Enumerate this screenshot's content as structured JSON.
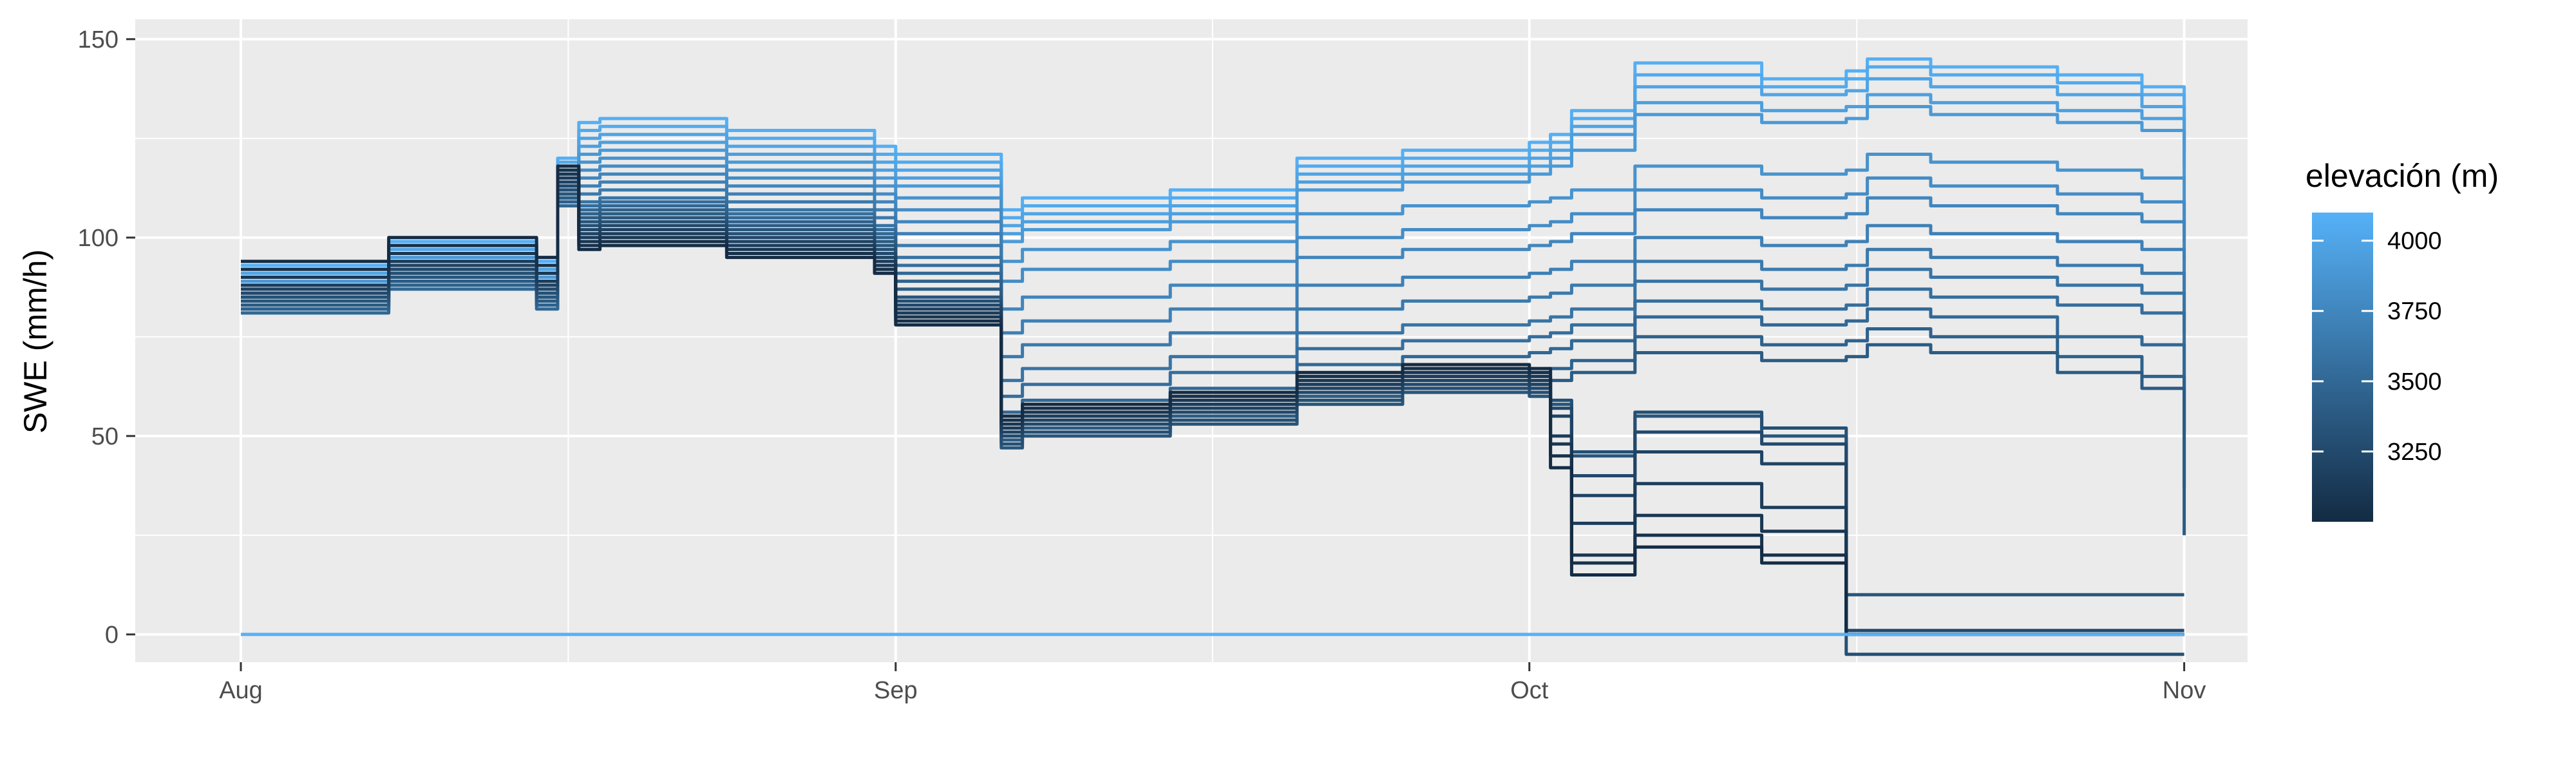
{
  "chart_data": {
    "type": "line",
    "title": "",
    "xlabel": "",
    "ylabel": "SWE (mm/h)",
    "x_ticks": [
      "Aug",
      "Sep",
      "Oct",
      "Nov"
    ],
    "y_ticks": [
      0,
      50,
      100,
      150
    ],
    "ylim": [
      -7,
      155
    ],
    "xlim": [
      "2023-07-27",
      "2023-11-04"
    ],
    "grid": true,
    "legend": {
      "title": "elevación (m)",
      "type": "colorbar",
      "placement": "right",
      "ticks": [
        3250,
        3500,
        3750,
        4000
      ],
      "range": [
        3000,
        4100
      ],
      "color_low": "#132b43",
      "color_high": "#56b1f7"
    },
    "x_dates": [
      "2023-08-01",
      "2023-08-07",
      "2023-08-08",
      "2023-08-15",
      "2023-08-16",
      "2023-08-17",
      "2023-08-18",
      "2023-08-24",
      "2023-08-31",
      "2023-09-01",
      "2023-09-06",
      "2023-09-07",
      "2023-09-08",
      "2023-09-14",
      "2023-09-20",
      "2023-09-25",
      "2023-10-01",
      "2023-10-02",
      "2023-10-03",
      "2023-10-06",
      "2023-10-12",
      "2023-10-16",
      "2023-10-17",
      "2023-10-20",
      "2023-10-24",
      "2023-10-26",
      "2023-10-30",
      "2023-11-01"
    ],
    "series": [
      {
        "elevation": 4080,
        "values": [
          93,
          93,
          99,
          94,
          120,
          129,
          130,
          127,
          123,
          121,
          107,
          110,
          110,
          112,
          120,
          122,
          124,
          126,
          132,
          144,
          140,
          142,
          145,
          143,
          143,
          141,
          138,
          126
        ]
      },
      {
        "elevation": 4040,
        "values": [
          92,
          92,
          98,
          93,
          119,
          127,
          128,
          125,
          121,
          119,
          105,
          108,
          108,
          110,
          118,
          120,
          122,
          124,
          130,
          141,
          138,
          140,
          143,
          141,
          141,
          139,
          136,
          124
        ]
      },
      {
        "elevation": 3990,
        "values": [
          91,
          91,
          97,
          92,
          118,
          125,
          126,
          123,
          119,
          117,
          103,
          106,
          106,
          108,
          116,
          118,
          120,
          122,
          128,
          138,
          136,
          137,
          140,
          138,
          138,
          136,
          133,
          121
        ]
      },
      {
        "elevation": 3950,
        "values": [
          90,
          90,
          96,
          91,
          117,
          123,
          124,
          121,
          117,
          115,
          101,
          104,
          104,
          106,
          114,
          116,
          118,
          120,
          126,
          134,
          132,
          133,
          136,
          134,
          134,
          132,
          130,
          118
        ]
      },
      {
        "elevation": 3900,
        "values": [
          89,
          89,
          95,
          90,
          116,
          121,
          122,
          119,
          115,
          113,
          99,
          102,
          102,
          104,
          112,
          114,
          116,
          118,
          122,
          131,
          129,
          130,
          133,
          131,
          131,
          129,
          127,
          115
        ]
      },
      {
        "elevation": 3850,
        "values": [
          88,
          88,
          94,
          89,
          115,
          119,
          120,
          117,
          113,
          110,
          94,
          97,
          97,
          99,
          106,
          108,
          109,
          110,
          112,
          118,
          116,
          117,
          121,
          119,
          119,
          117,
          115,
          103
        ]
      },
      {
        "elevation": 3800,
        "values": [
          87,
          87,
          93,
          88,
          114,
          117,
          118,
          115,
          111,
          107,
          89,
          92,
          92,
          94,
          100,
          102,
          103,
          104,
          106,
          112,
          110,
          111,
          115,
          113,
          113,
          111,
          109,
          99
        ]
      },
      {
        "elevation": 3750,
        "values": [
          86,
          86,
          92,
          87,
          113,
          115,
          116,
          113,
          109,
          104,
          82,
          85,
          85,
          88,
          95,
          97,
          98,
          99,
          101,
          107,
          105,
          106,
          110,
          108,
          108,
          106,
          104,
          94
        ]
      },
      {
        "elevation": 3700,
        "values": [
          85,
          85,
          91,
          86,
          112,
          113,
          114,
          111,
          107,
          101,
          76,
          79,
          79,
          82,
          88,
          90,
          91,
          92,
          94,
          100,
          98,
          99,
          103,
          101,
          101,
          99,
          97,
          87
        ]
      },
      {
        "elevation": 3650,
        "values": [
          84,
          84,
          90,
          85,
          111,
          111,
          112,
          109,
          105,
          98,
          70,
          73,
          73,
          76,
          82,
          84,
          85,
          86,
          88,
          94,
          92,
          93,
          97,
          95,
          95,
          93,
          91,
          80
        ]
      },
      {
        "elevation": 3600,
        "values": [
          83,
          83,
          89,
          84,
          110,
          109,
          110,
          107,
          103,
          95,
          64,
          67,
          67,
          70,
          76,
          78,
          79,
          80,
          82,
          89,
          87,
          88,
          92,
          90,
          90,
          88,
          86,
          76
        ]
      },
      {
        "elevation": 3550,
        "values": [
          82,
          82,
          88,
          83,
          109,
          108,
          109,
          106,
          102,
          93,
          60,
          63,
          63,
          66,
          72,
          74,
          75,
          76,
          78,
          84,
          82,
          83,
          87,
          85,
          85,
          83,
          81,
          62
        ]
      },
      {
        "elevation": 3500,
        "values": [
          81,
          81,
          87,
          82,
          108,
          107,
          108,
          105,
          101,
          91,
          56,
          59,
          59,
          62,
          68,
          70,
          71,
          72,
          74,
          80,
          78,
          79,
          82,
          80,
          80,
          75,
          73,
          51
        ]
      },
      {
        "elevation": 3450,
        "values": [
          82,
          82,
          88,
          83,
          109,
          106,
          107,
          104,
          100,
          89,
          52,
          55,
          55,
          58,
          63,
          65,
          66,
          67,
          69,
          75,
          73,
          74,
          77,
          75,
          75,
          70,
          65,
          37
        ]
      },
      {
        "elevation": 3400,
        "values": [
          83,
          83,
          89,
          84,
          110,
          105,
          106,
          103,
          99,
          87,
          49,
          52,
          52,
          55,
          60,
          62,
          63,
          64,
          66,
          71,
          69,
          70,
          73,
          71,
          71,
          66,
          62,
          25
        ]
      },
      {
        "elevation": 3350,
        "values": [
          84,
          84,
          90,
          85,
          111,
          104,
          105,
          102,
          98,
          85,
          47,
          50,
          50,
          53,
          58,
          61,
          60,
          58,
          45,
          55,
          50,
          10,
          10,
          10,
          10,
          10,
          10,
          10
        ]
      },
      {
        "elevation": 3300,
        "values": [
          85,
          85,
          91,
          86,
          112,
          103,
          104,
          101,
          97,
          84,
          48,
          51,
          51,
          54,
          59,
          62,
          61,
          59,
          46,
          56,
          52,
          -5,
          -5,
          -5,
          -5,
          -5,
          -5,
          -5
        ]
      },
      {
        "elevation": 3250,
        "values": [
          86,
          86,
          92,
          87,
          113,
          102,
          103,
          100,
          96,
          83,
          50,
          53,
          53,
          56,
          61,
          63,
          62,
          57,
          40,
          51,
          48,
          1,
          1,
          1,
          1,
          1,
          1,
          1
        ]
      },
      {
        "elevation": 3200,
        "values": [
          87,
          87,
          93,
          88,
          114,
          101,
          102,
          99,
          95,
          82,
          51,
          54,
          54,
          57,
          62,
          64,
          63,
          55,
          35,
          46,
          43,
          0,
          0,
          0,
          0,
          0,
          0,
          0
        ]
      },
      {
        "elevation": 3150,
        "values": [
          88,
          88,
          94,
          89,
          115,
          100,
          101,
          98,
          94,
          81,
          52,
          55,
          55,
          58,
          63,
          65,
          64,
          50,
          28,
          38,
          32,
          0,
          0,
          0,
          0,
          0,
          0,
          0
        ]
      },
      {
        "elevation": 3100,
        "values": [
          90,
          90,
          96,
          91,
          116,
          99,
          100,
          97,
          93,
          80,
          53,
          56,
          56,
          59,
          64,
          66,
          65,
          48,
          20,
          30,
          26,
          0,
          0,
          0,
          0,
          0,
          0,
          0
        ]
      },
      {
        "elevation": 3050,
        "values": [
          92,
          92,
          98,
          93,
          117,
          98,
          99,
          96,
          92,
          79,
          54,
          57,
          57,
          60,
          65,
          67,
          66,
          45,
          18,
          25,
          20,
          0,
          0,
          0,
          0,
          0,
          0,
          0
        ]
      },
      {
        "elevation": 3010,
        "values": [
          94,
          94,
          100,
          95,
          118,
          97,
          98,
          95,
          91,
          78,
          55,
          58,
          58,
          61,
          66,
          68,
          67,
          42,
          15,
          22,
          18,
          0,
          0,
          0,
          0,
          0,
          0,
          0
        ]
      },
      {
        "elevation": 4100,
        "values": [
          0,
          0,
          0,
          0,
          0,
          0,
          0,
          0,
          0,
          0,
          0,
          0,
          0,
          0,
          0,
          0,
          0,
          0,
          0,
          0,
          0,
          0,
          0,
          0,
          0,
          0,
          0,
          0
        ]
      }
    ]
  }
}
